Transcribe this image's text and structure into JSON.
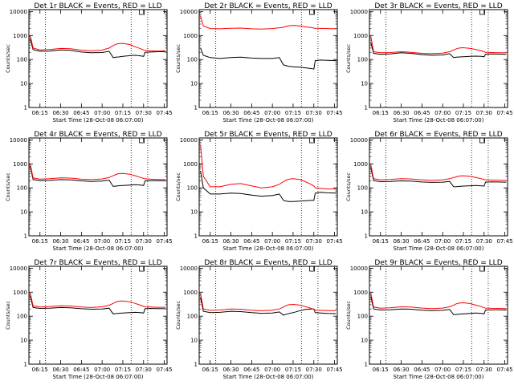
{
  "chart_data": [
    {
      "type": "line",
      "title": "Det 1r BLACK = Events, RED = LLD",
      "xlabel": "Start Time (28-Oct-08 06:07:00)",
      "ylabel": "Counts/sec",
      "ylim": [
        1,
        12000
      ],
      "yscale": "log",
      "x_ticks": [
        "06:15",
        "06:30",
        "06:45",
        "07:00",
        "07:15",
        "07:30",
        "07:45"
      ],
      "y_ticks": [
        "1",
        "10",
        "100",
        "1000",
        "10000"
      ],
      "series_colors": {
        "events": "#000000",
        "lld": "#ff0000"
      },
      "vlines_x": [
        "06:19",
        "07:21",
        "07:33"
      ],
      "x": [
        "06:08",
        "06:10",
        "06:15",
        "06:22",
        "06:30",
        "06:37",
        "06:45",
        "06:52",
        "07:00",
        "07:05",
        "07:08",
        "07:10",
        "07:12",
        "07:15",
        "07:20",
        "07:24",
        "07:28",
        "07:30",
        "07:31",
        "07:35",
        "07:40",
        "07:46"
      ],
      "series": [
        {
          "values": [
            700,
            260,
            220,
            225,
            250,
            240,
            205,
            190,
            195,
            220,
            120,
            125,
            128,
            135,
            145,
            150,
            140,
            135,
            200,
            205,
            210,
            212
          ]
        },
        {
          "values": [
            1000,
            300,
            250,
            260,
            290,
            280,
            245,
            230,
            245,
            300,
            380,
            430,
            460,
            470,
            420,
            340,
            280,
            250,
            240,
            230,
            225,
            230
          ]
        }
      ]
    },
    {
      "type": "line",
      "title": "Det 2r BLACK = Events, RED = LLD",
      "xlabel": "Start Time (28-Oct-08 06:07:00)",
      "ylabel": "Counts/sec",
      "ylim": [
        1,
        12000
      ],
      "yscale": "log",
      "x_ticks": [
        "06:15",
        "06:30",
        "06:45",
        "07:00",
        "07:15",
        "07:30",
        "07:45"
      ],
      "y_ticks": [
        "1",
        "10",
        "100",
        "1000",
        "10000"
      ],
      "series_colors": {
        "events": "#000000",
        "lld": "#ff0000"
      },
      "vlines_x": [
        "06:19",
        "07:21",
        "07:33"
      ],
      "x": [
        "06:08",
        "06:10",
        "06:15",
        "06:22",
        "06:30",
        "06:37",
        "06:45",
        "06:52",
        "07:00",
        "07:05",
        "07:08",
        "07:10",
        "07:12",
        "07:15",
        "07:20",
        "07:24",
        "07:28",
        "07:30",
        "07:31",
        "07:35",
        "07:40",
        "07:46"
      ],
      "series": [
        {
          "values": [
            300,
            150,
            120,
            110,
            120,
            125,
            115,
            110,
            110,
            120,
            60,
            55,
            52,
            50,
            48,
            45,
            42,
            40,
            90,
            95,
            92,
            90
          ]
        },
        {
          "values": [
            6500,
            2500,
            1950,
            1900,
            2000,
            2050,
            1900,
            1850,
            1950,
            2100,
            2200,
            2400,
            2550,
            2650,
            2500,
            2300,
            2150,
            2050,
            2000,
            1980,
            1950,
            1900
          ]
        }
      ]
    },
    {
      "type": "line",
      "title": "Det 3r BLACK = Events, RED = LLD",
      "xlabel": "Start Time (28-Oct-08 06:07:00)",
      "ylabel": "Counts/sec",
      "ylim": [
        1,
        12000
      ],
      "yscale": "log",
      "x_ticks": [
        "06:15",
        "06:30",
        "06:45",
        "07:00",
        "07:15",
        "07:30",
        "07:45"
      ],
      "y_ticks": [
        "1",
        "10",
        "100",
        "1000",
        "10000"
      ],
      "series_colors": {
        "events": "#000000",
        "lld": "#ff0000"
      },
      "vlines_x": [
        "06:19",
        "07:21",
        "07:33"
      ],
      "x": [
        "06:08",
        "06:10",
        "06:15",
        "06:22",
        "06:30",
        "06:37",
        "06:45",
        "06:52",
        "07:00",
        "07:05",
        "07:08",
        "07:10",
        "07:12",
        "07:15",
        "07:20",
        "07:24",
        "07:28",
        "07:30",
        "07:31",
        "07:35",
        "07:40",
        "07:46"
      ],
      "series": [
        {
          "values": [
            500,
            180,
            165,
            170,
            190,
            180,
            160,
            150,
            155,
            175,
            120,
            125,
            128,
            130,
            135,
            138,
            135,
            130,
            165,
            170,
            168,
            165
          ]
        },
        {
          "values": [
            900,
            210,
            190,
            195,
            210,
            200,
            180,
            175,
            185,
            210,
            250,
            280,
            300,
            310,
            290,
            260,
            230,
            210,
            200,
            195,
            190,
            190
          ]
        }
      ]
    },
    {
      "type": "line",
      "title": "Det 4r BLACK = Events, RED = LLD",
      "xlabel": "Start Time (28-Oct-08 06:07:00)",
      "ylabel": "Counts/sec",
      "ylim": [
        1,
        12000
      ],
      "yscale": "log",
      "x_ticks": [
        "06:15",
        "06:30",
        "06:45",
        "07:00",
        "07:15",
        "07:30",
        "07:45"
      ],
      "y_ticks": [
        "1",
        "10",
        "100",
        "1000",
        "10000"
      ],
      "series_colors": {
        "events": "#000000",
        "lld": "#ff0000"
      },
      "vlines_x": [
        "06:19",
        "07:21",
        "07:33"
      ],
      "x": [
        "06:08",
        "06:10",
        "06:15",
        "06:22",
        "06:30",
        "06:37",
        "06:45",
        "06:52",
        "07:00",
        "07:05",
        "07:08",
        "07:10",
        "07:12",
        "07:15",
        "07:20",
        "07:24",
        "07:28",
        "07:30",
        "07:31",
        "07:35",
        "07:40",
        "07:46"
      ],
      "series": [
        {
          "values": [
            800,
            220,
            200,
            205,
            220,
            215,
            195,
            185,
            190,
            210,
            115,
            118,
            122,
            125,
            130,
            135,
            130,
            125,
            195,
            200,
            198,
            195
          ]
        },
        {
          "values": [
            1000,
            260,
            230,
            240,
            260,
            255,
            230,
            220,
            235,
            270,
            320,
            360,
            390,
            400,
            370,
            320,
            270,
            245,
            240,
            230,
            225,
            225
          ]
        }
      ]
    },
    {
      "type": "line",
      "title": "Det 5r BLACK = Events, RED = LLD",
      "xlabel": "Start Time (28-Oct-08 06:07:00)",
      "ylabel": "Counts/sec",
      "ylim": [
        1,
        12000
      ],
      "yscale": "log",
      "x_ticks": [
        "06:15",
        "06:30",
        "06:45",
        "07:00",
        "07:15",
        "07:30",
        "07:45"
      ],
      "y_ticks": [
        "1",
        "10",
        "100",
        "1000",
        "10000"
      ],
      "series_colors": {
        "events": "#000000",
        "lld": "#ff0000"
      },
      "vlines_x": [
        "06:19",
        "07:21",
        "07:33"
      ],
      "x": [
        "06:08",
        "06:10",
        "06:15",
        "06:22",
        "06:30",
        "06:37",
        "06:45",
        "06:52",
        "07:00",
        "07:05",
        "07:08",
        "07:10",
        "07:12",
        "07:15",
        "07:20",
        "07:24",
        "07:28",
        "07:30",
        "07:31",
        "07:35",
        "07:40",
        "07:46"
      ],
      "series": [
        {
          "values": [
            500,
            100,
            55,
            55,
            60,
            58,
            50,
            45,
            48,
            55,
            30,
            28,
            27,
            27,
            28,
            29,
            30,
            30,
            60,
            65,
            62,
            60
          ]
        },
        {
          "values": [
            6000,
            300,
            110,
            110,
            140,
            150,
            120,
            100,
            110,
            140,
            180,
            210,
            230,
            240,
            220,
            180,
            140,
            120,
            100,
            95,
            90,
            90
          ]
        }
      ]
    },
    {
      "type": "line",
      "title": "Det 6r BLACK = Events, RED = LLD",
      "xlabel": "Start Time (28-Oct-08 06:07:00)",
      "ylabel": "Counts/sec",
      "ylim": [
        1,
        12000
      ],
      "yscale": "log",
      "x_ticks": [
        "06:15",
        "06:30",
        "06:45",
        "07:00",
        "07:15",
        "07:30",
        "07:45"
      ],
      "y_ticks": [
        "1",
        "10",
        "100",
        "1000",
        "10000"
      ],
      "series_colors": {
        "events": "#000000",
        "lld": "#ff0000"
      },
      "vlines_x": [
        "06:19",
        "07:21",
        "07:33"
      ],
      "x": [
        "06:08",
        "06:10",
        "06:15",
        "06:22",
        "06:30",
        "06:37",
        "06:45",
        "06:52",
        "07:00",
        "07:05",
        "07:08",
        "07:10",
        "07:12",
        "07:15",
        "07:20",
        "07:24",
        "07:28",
        "07:30",
        "07:31",
        "07:35",
        "07:40",
        "07:46"
      ],
      "series": [
        {
          "values": [
            700,
            200,
            180,
            185,
            195,
            190,
            175,
            168,
            172,
            185,
            110,
            112,
            115,
            118,
            122,
            125,
            120,
            118,
            172,
            178,
            175,
            172
          ]
        },
        {
          "values": [
            900,
            240,
            215,
            225,
            240,
            235,
            215,
            205,
            215,
            240,
            270,
            290,
            310,
            320,
            300,
            270,
            240,
            220,
            215,
            210,
            208,
            205
          ]
        }
      ]
    },
    {
      "type": "line",
      "title": "Det 7r BLACK = Events, RED = LLD",
      "xlabel": "Start Time (28-Oct-08 06:07:00)",
      "ylabel": "Counts/sec",
      "ylim": [
        1,
        12000
      ],
      "yscale": "log",
      "x_ticks": [
        "06:15",
        "06:30",
        "06:45",
        "07:00",
        "07:15",
        "07:30",
        "07:45"
      ],
      "y_ticks": [
        "1",
        "10",
        "100",
        "1000",
        "10000"
      ],
      "series_colors": {
        "events": "#000000",
        "lld": "#ff0000"
      },
      "vlines_x": [
        "06:19",
        "07:21",
        "07:33"
      ],
      "x": [
        "06:08",
        "06:10",
        "06:15",
        "06:22",
        "06:30",
        "06:37",
        "06:45",
        "06:52",
        "07:00",
        "07:05",
        "07:08",
        "07:10",
        "07:12",
        "07:15",
        "07:20",
        "07:24",
        "07:28",
        "07:30",
        "07:31",
        "07:35",
        "07:40",
        "07:46"
      ],
      "series": [
        {
          "values": [
            700,
            230,
            210,
            215,
            230,
            225,
            205,
            195,
            200,
            215,
            125,
            128,
            132,
            135,
            140,
            145,
            140,
            135,
            205,
            210,
            208,
            205
          ]
        },
        {
          "values": [
            900,
            270,
            240,
            250,
            270,
            265,
            240,
            230,
            245,
            285,
            340,
            390,
            420,
            430,
            400,
            340,
            285,
            255,
            245,
            240,
            235,
            235
          ]
        }
      ]
    },
    {
      "type": "line",
      "title": "Det 8r BLACK = Events, RED = LLD",
      "xlabel": "Start Time (28-Oct-08 06:07:00)",
      "ylabel": "Counts/sec",
      "ylim": [
        1,
        12000
      ],
      "yscale": "log",
      "x_ticks": [
        "06:15",
        "06:30",
        "06:45",
        "07:00",
        "07:15",
        "07:30",
        "07:45"
      ],
      "y_ticks": [
        "1",
        "10",
        "100",
        "1000",
        "10000"
      ],
      "series_colors": {
        "events": "#000000",
        "lld": "#ff0000"
      },
      "vlines_x": [
        "06:19",
        "07:21",
        "07:33"
      ],
      "x": [
        "06:08",
        "06:10",
        "06:15",
        "06:22",
        "06:30",
        "06:37",
        "06:45",
        "06:52",
        "07:00",
        "07:05",
        "07:08",
        "07:10",
        "07:12",
        "07:15",
        "07:20",
        "07:24",
        "07:28",
        "07:30",
        "07:31",
        "07:35",
        "07:40",
        "07:46"
      ],
      "series": [
        {
          "values": [
            600,
            160,
            140,
            145,
            160,
            155,
            140,
            132,
            135,
            150,
            110,
            120,
            130,
            140,
            170,
            190,
            200,
            200,
            140,
            135,
            130,
            128
          ]
        },
        {
          "values": [
            900,
            200,
            175,
            180,
            200,
            195,
            175,
            168,
            178,
            200,
            240,
            280,
            300,
            310,
            290,
            250,
            210,
            190,
            180,
            175,
            170,
            170
          ]
        }
      ]
    },
    {
      "type": "line",
      "title": "Det 9r BLACK = Events, RED = LLD",
      "xlabel": "Start Time (28-Oct-08 06:07:00)",
      "ylabel": "Counts/sec",
      "ylim": [
        1,
        12000
      ],
      "yscale": "log",
      "x_ticks": [
        "06:15",
        "06:30",
        "06:45",
        "07:00",
        "07:15",
        "07:30",
        "07:45"
      ],
      "y_ticks": [
        "1",
        "10",
        "100",
        "1000",
        "10000"
      ],
      "series_colors": {
        "events": "#000000",
        "lld": "#ff0000"
      },
      "vlines_x": [
        "06:19",
        "07:21",
        "07:33"
      ],
      "x": [
        "06:08",
        "06:10",
        "06:15",
        "06:22",
        "06:30",
        "06:37",
        "06:45",
        "06:52",
        "07:00",
        "07:05",
        "07:08",
        "07:10",
        "07:12",
        "07:15",
        "07:20",
        "07:24",
        "07:28",
        "07:30",
        "07:31",
        "07:35",
        "07:40",
        "07:46"
      ],
      "series": [
        {
          "values": [
            650,
            200,
            180,
            185,
            200,
            195,
            178,
            170,
            175,
            190,
            115,
            118,
            122,
            125,
            130,
            135,
            130,
            125,
            180,
            185,
            183,
            180
          ]
        },
        {
          "values": [
            900,
            240,
            215,
            225,
            245,
            240,
            218,
            208,
            218,
            245,
            290,
            330,
            350,
            360,
            335,
            290,
            250,
            225,
            218,
            212,
            210,
            208
          ]
        }
      ]
    }
  ]
}
